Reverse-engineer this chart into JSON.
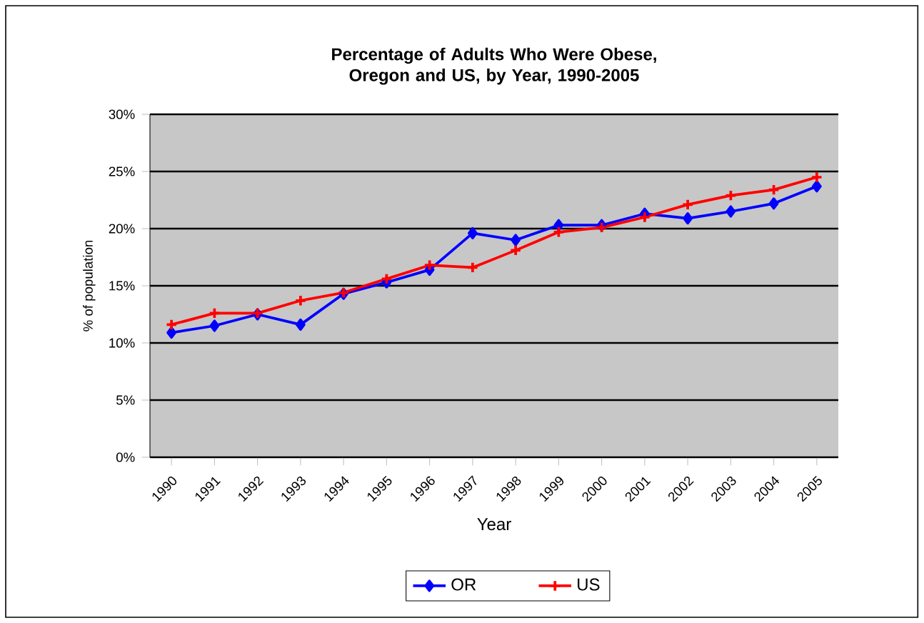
{
  "chart_data": {
    "type": "line",
    "title": "Percentage of Adults  Who Were Obese, Oregon and US, by Year, 1990-2005",
    "xlabel": "Year",
    "ylabel": "% of population",
    "categories": [
      "1990",
      "1991",
      "1992",
      "1993",
      "1994",
      "1995",
      "1996",
      "1997",
      "1998",
      "1999",
      "2000",
      "2001",
      "2002",
      "2003",
      "2004",
      "2005"
    ],
    "series": [
      {
        "name": "OR",
        "color": "#0000ff",
        "marker": "diamond",
        "values": [
          10.9,
          11.5,
          12.5,
          11.6,
          14.3,
          15.3,
          16.4,
          19.6,
          19.0,
          20.3,
          20.3,
          21.3,
          20.9,
          21.5,
          22.2,
          23.7
        ]
      },
      {
        "name": "US",
        "color": "#ff0000",
        "marker": "cross",
        "values": [
          11.6,
          12.6,
          12.6,
          13.7,
          14.4,
          15.6,
          16.8,
          16.6,
          18.1,
          19.7,
          20.1,
          21.0,
          22.1,
          22.9,
          23.4,
          24.5
        ]
      }
    ],
    "ylim": [
      0,
      30
    ],
    "yticks": [
      {
        "value": 0,
        "label": "0%"
      },
      {
        "value": 5,
        "label": "5%"
      },
      {
        "value": 10,
        "label": "10%"
      },
      {
        "value": 15,
        "label": "15%"
      },
      {
        "value": 20,
        "label": "20%"
      },
      {
        "value": 25,
        "label": "25%"
      },
      {
        "value": 30,
        "label": "30%"
      }
    ],
    "grid": "y",
    "legend": "bottom",
    "line_style": "solid"
  }
}
